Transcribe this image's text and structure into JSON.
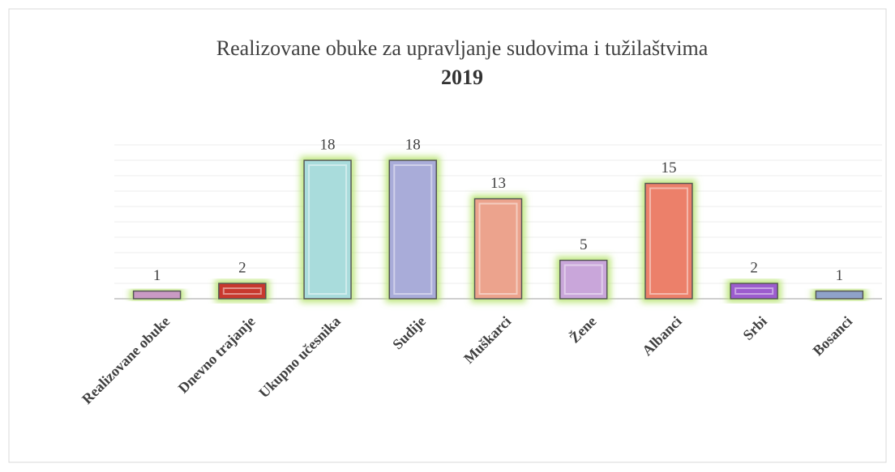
{
  "chart_data": {
    "type": "bar",
    "title": "Realizovane obuke za upravljanje sudovima i tužilaštvima",
    "subtitle": "2019",
    "categories": [
      "Realizovane obuke",
      "Dnevno trajanje",
      "Ukupno učesnika",
      "Sudije",
      "Muškarci",
      "Žene",
      "Albanci",
      "Srbi",
      "Bosanci"
    ],
    "values": [
      1,
      2,
      18,
      18,
      13,
      5,
      15,
      2,
      1
    ],
    "colors": [
      "#c99ac4",
      "#c8392e",
      "#a9dcdc",
      "#a9acd9",
      "#eca38d",
      "#c9a6da",
      "#ec806a",
      "#9c5bce",
      "#8fa2c9"
    ],
    "ylim": [
      0,
      20
    ],
    "yticks": [
      0,
      2,
      4,
      6,
      8,
      10,
      12,
      14,
      16,
      18,
      20
    ],
    "grid": true
  }
}
